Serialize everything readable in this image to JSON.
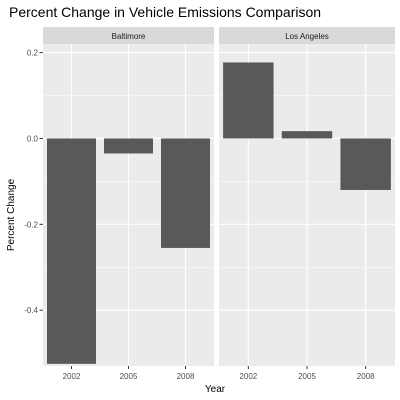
{
  "chart_data": {
    "type": "bar",
    "title": "Percent Change in Vehicle Emissions Comparison",
    "xlabel": "Year",
    "ylabel": "Percent Change",
    "categories": [
      "2002",
      "2005",
      "2008"
    ],
    "ylim": [
      -0.53,
      0.22
    ],
    "yticks": [
      "0.2",
      "0.0",
      "-0.2",
      "-0.4"
    ],
    "yticks_values": [
      0.2,
      0.0,
      -0.2,
      -0.4
    ],
    "grid": true,
    "bar_color": "#595959",
    "panel_background": "#ebebeb",
    "strip_background": "#d9d9d9",
    "facets": [
      {
        "name": "Baltimore",
        "values": [
          -0.525,
          -0.035,
          -0.255
        ]
      },
      {
        "name": "Los Angeles",
        "values": [
          0.177,
          0.017,
          -0.12
        ]
      }
    ]
  }
}
